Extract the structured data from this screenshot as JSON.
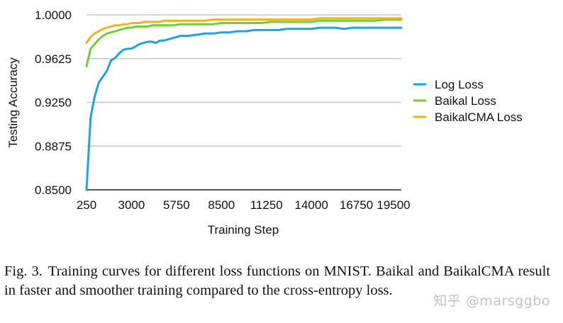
{
  "chart_data": {
    "type": "line",
    "title": "",
    "xlabel": "Training Step",
    "ylabel": "Testing Accuracy",
    "xlim": [
      250,
      19500
    ],
    "ylim": [
      0.85,
      1.0
    ],
    "x_tick_labels": [
      "250",
      "3000",
      "5750",
      "8500",
      "11250",
      "14000",
      "16750",
      "19500"
    ],
    "x_tick_values": [
      250,
      3000,
      5750,
      8500,
      11250,
      14000,
      16750,
      19500
    ],
    "y_tick_labels": [
      "1.0000",
      "0.9625",
      "0.9250",
      "0.8875",
      "0.8500"
    ],
    "y_tick_values": [
      1.0,
      0.9625,
      0.925,
      0.8875,
      0.85
    ],
    "grid": "horizontal",
    "legend_position": "right",
    "x": [
      250,
      500,
      750,
      1000,
      1250,
      1500,
      1750,
      2000,
      2250,
      2500,
      2750,
      3000,
      3250,
      3500,
      3750,
      4000,
      4250,
      4500,
      4750,
      5000,
      5500,
      6000,
      6500,
      7000,
      7500,
      8000,
      8500,
      9000,
      9500,
      10000,
      10500,
      11000,
      11500,
      12000,
      12500,
      13000,
      13500,
      14000,
      14500,
      15000,
      15500,
      16000,
      16500,
      17000,
      17500,
      18000,
      18500,
      19000,
      19500
    ],
    "series": [
      {
        "name": "Log Loss",
        "color": "#1ea1e6",
        "values": [
          0.85,
          0.912,
          0.93,
          0.942,
          0.947,
          0.952,
          0.961,
          0.963,
          0.967,
          0.97,
          0.971,
          0.971,
          0.973,
          0.975,
          0.976,
          0.977,
          0.977,
          0.976,
          0.978,
          0.978,
          0.98,
          0.982,
          0.982,
          0.983,
          0.984,
          0.984,
          0.985,
          0.985,
          0.986,
          0.986,
          0.987,
          0.987,
          0.987,
          0.987,
          0.988,
          0.988,
          0.988,
          0.988,
          0.989,
          0.989,
          0.989,
          0.988,
          0.989,
          0.989,
          0.989,
          0.989,
          0.989,
          0.989,
          0.989
        ]
      },
      {
        "name": "Baikal Loss",
        "color": "#6fcf3a",
        "values": [
          0.956,
          0.971,
          0.975,
          0.979,
          0.982,
          0.984,
          0.985,
          0.986,
          0.987,
          0.988,
          0.989,
          0.989,
          0.99,
          0.99,
          0.99,
          0.99,
          0.991,
          0.991,
          0.991,
          0.991,
          0.991,
          0.992,
          0.992,
          0.992,
          0.992,
          0.992,
          0.993,
          0.993,
          0.993,
          0.993,
          0.993,
          0.993,
          0.994,
          0.994,
          0.994,
          0.994,
          0.994,
          0.994,
          0.995,
          0.995,
          0.995,
          0.995,
          0.995,
          0.995,
          0.995,
          0.995,
          0.996,
          0.996,
          0.996
        ]
      },
      {
        "name": "BaikalCMA Loss",
        "color": "#f2b21c",
        "values": [
          0.976,
          0.981,
          0.984,
          0.986,
          0.988,
          0.989,
          0.99,
          0.991,
          0.991,
          0.992,
          0.992,
          0.993,
          0.993,
          0.993,
          0.994,
          0.994,
          0.994,
          0.994,
          0.994,
          0.995,
          0.995,
          0.995,
          0.995,
          0.995,
          0.995,
          0.996,
          0.996,
          0.996,
          0.996,
          0.996,
          0.996,
          0.996,
          0.996,
          0.996,
          0.996,
          0.996,
          0.996,
          0.996,
          0.997,
          0.997,
          0.997,
          0.997,
          0.997,
          0.997,
          0.997,
          0.997,
          0.997,
          0.997,
          0.997
        ]
      }
    ]
  },
  "caption": {
    "label": "Fig. 3.",
    "text": "Training curves for different loss functions on MNIST. Baikal and BaikalCMA result in faster and smoother training compared to the cross-entropy loss."
  },
  "watermark": "知乎 @marsggbo"
}
